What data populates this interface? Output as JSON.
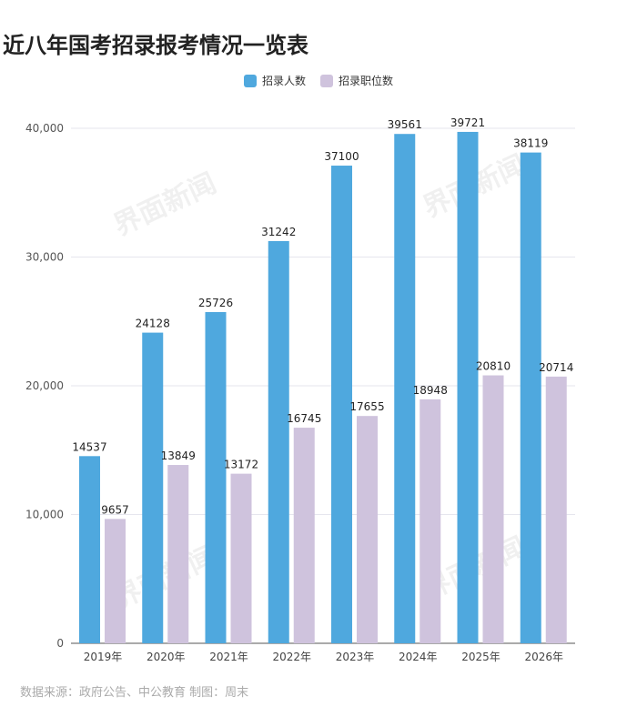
{
  "title": "近八年国考招录报考情况一览表",
  "source": "数据来源：政府公告、中公教育 制图：周末",
  "watermark": "界面新闻",
  "chart_data": {
    "type": "bar",
    "title": "近八年国考招录报考情况一览表",
    "categories": [
      "2019年",
      "2020年",
      "2021年",
      "2022年",
      "2023年",
      "2024年",
      "2025年",
      "2026年"
    ],
    "series": [
      {
        "name": "招录人数",
        "color": "#4fa8de",
        "values": [
          14537,
          24128,
          25726,
          31242,
          37100,
          39561,
          39721,
          38119
        ]
      },
      {
        "name": "招录职位数",
        "color": "#cfc3dd",
        "values": [
          9657,
          13849,
          13172,
          16745,
          17655,
          18948,
          20810,
          20714
        ]
      }
    ],
    "yticks": [
      "0",
      "10,000",
      "20,000",
      "30,000",
      "40,000"
    ],
    "ytick_values": [
      0,
      10000,
      20000,
      30000,
      40000
    ],
    "ylim": [
      0,
      40000
    ],
    "grid": true,
    "legend": "top-center",
    "xlabel": "",
    "ylabel": ""
  }
}
